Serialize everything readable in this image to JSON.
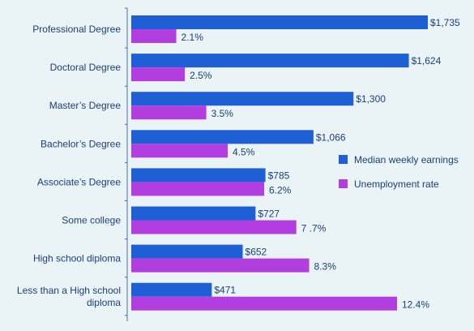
{
  "chart_data": {
    "type": "bar",
    "orientation": "horizontal",
    "categories": [
      [
        "Professional Degree"
      ],
      [
        "Doctoral Degree"
      ],
      [
        "Master’s Degree"
      ],
      [
        "Bachelor’s Degree"
      ],
      [
        "Associate’s Degree"
      ],
      [
        "Some college"
      ],
      [
        "High school diploma"
      ],
      [
        "Less than a High school",
        "diploma"
      ]
    ],
    "series": [
      {
        "name": "Median weekly earnings",
        "color": "#1f5fd6",
        "values": [
          1735,
          1624,
          1300,
          1066,
          785,
          727,
          652,
          471
        ],
        "labels": [
          "$1,735",
          "$1,624",
          "$1,300",
          "$1,066",
          "$785",
          "$727",
          "$652",
          "$471"
        ]
      },
      {
        "name": "Unemployment rate",
        "color": "#b23ee0",
        "values": [
          2.1,
          2.5,
          3.5,
          4.5,
          6.2,
          7.7,
          8.3,
          12.4
        ],
        "labels": [
          "2.1%",
          "2.5%",
          "3.5%",
          "4.5%",
          "6.2%",
          "7 .7%",
          "8.3%",
          "12.4%"
        ]
      }
    ],
    "legend_position": "right",
    "grid": false
  }
}
